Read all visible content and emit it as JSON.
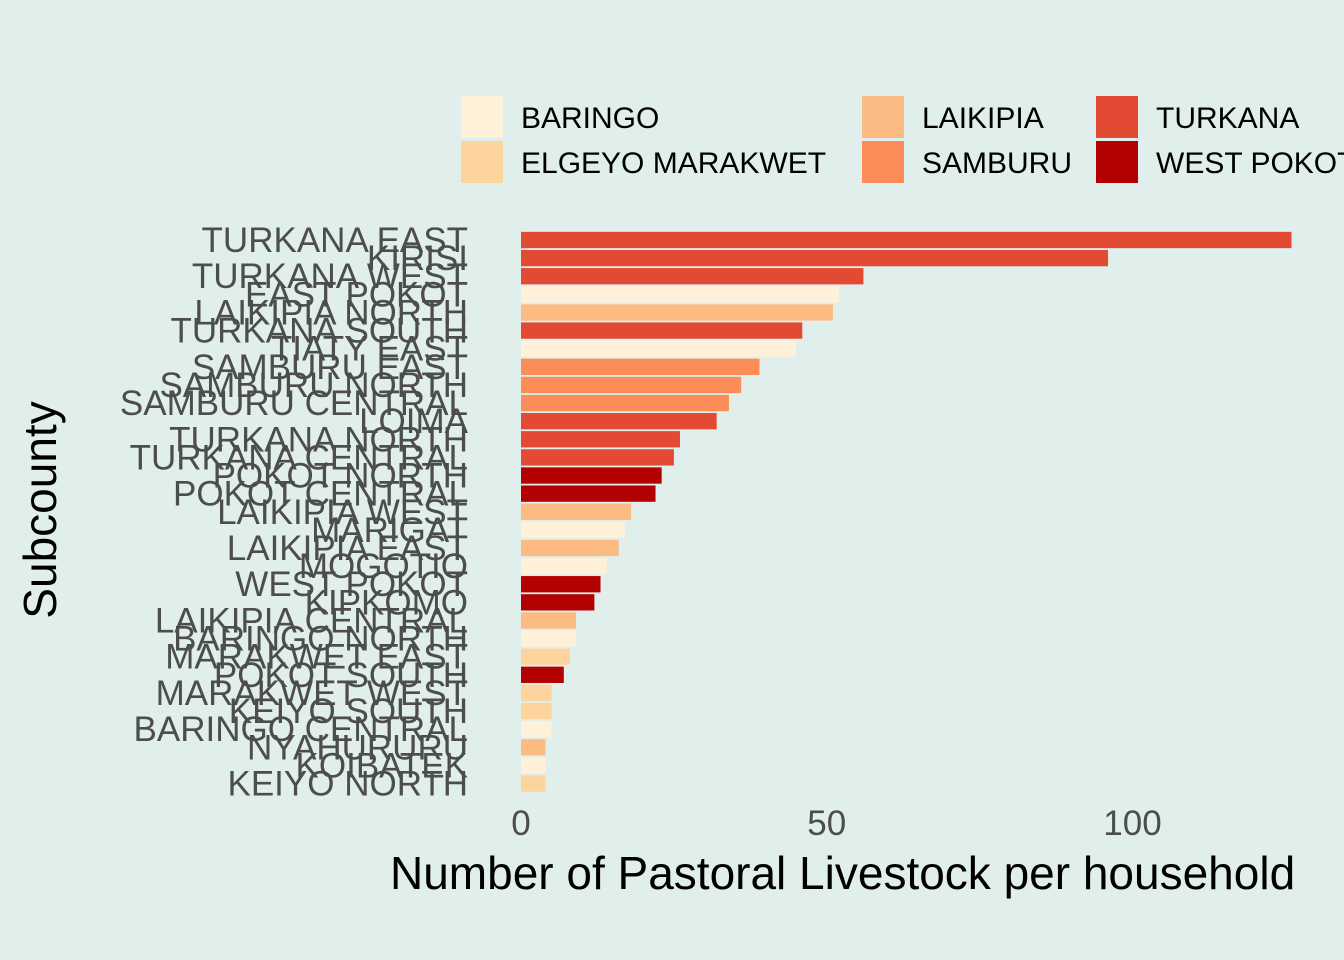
{
  "chart_data": {
    "type": "bar",
    "orientation": "horizontal",
    "xlabel": "Number of Pastoral Livestock per household",
    "ylabel": "Subcounty",
    "xlim": [
      0,
      128
    ],
    "x_ticks": [
      0,
      50,
      100
    ],
    "grid": false,
    "legend_position": "top",
    "legend": [
      {
        "name": "BARINGO",
        "color": "#fef0d9"
      },
      {
        "name": "ELGEYO MARAKWET",
        "color": "#fdd49e"
      },
      {
        "name": "LAIKIPIA",
        "color": "#fdbb84"
      },
      {
        "name": "SAMBURU",
        "color": "#fc8d59"
      },
      {
        "name": "TURKANA",
        "color": "#e34a33"
      },
      {
        "name": "WEST POKOT",
        "color": "#b30000"
      }
    ],
    "bars": [
      {
        "category": "TURKANA EAST",
        "county": "TURKANA",
        "value": 126
      },
      {
        "category": "KIRISI",
        "county": "TURKANA",
        "value": 96
      },
      {
        "category": "TURKANA WEST",
        "county": "TURKANA",
        "value": 56
      },
      {
        "category": "EAST POKOT",
        "county": "BARINGO",
        "value": 52
      },
      {
        "category": "LAIKIPIA NORTH",
        "county": "LAIKIPIA",
        "value": 51
      },
      {
        "category": "TURKANA SOUTH",
        "county": "TURKANA",
        "value": 46
      },
      {
        "category": "TIATY EAST",
        "county": "BARINGO",
        "value": 45
      },
      {
        "category": "SAMBURU EAST",
        "county": "SAMBURU",
        "value": 39
      },
      {
        "category": "SAMBURU NORTH",
        "county": "SAMBURU",
        "value": 36
      },
      {
        "category": "SAMBURU CENTRAL",
        "county": "SAMBURU",
        "value": 34
      },
      {
        "category": "LOIMA",
        "county": "TURKANA",
        "value": 32
      },
      {
        "category": "TURKANA NORTH",
        "county": "TURKANA",
        "value": 26
      },
      {
        "category": "TURKANA CENTRAL",
        "county": "TURKANA",
        "value": 25
      },
      {
        "category": "POKOT NORTH",
        "county": "WEST POKOT",
        "value": 23
      },
      {
        "category": "POKOT CENTRAL",
        "county": "WEST POKOT",
        "value": 22
      },
      {
        "category": "LAIKIPIA WEST",
        "county": "LAIKIPIA",
        "value": 18
      },
      {
        "category": "MARIGAT",
        "county": "BARINGO",
        "value": 17
      },
      {
        "category": "LAIKIPIA EAST",
        "county": "LAIKIPIA",
        "value": 16
      },
      {
        "category": "MOGOTIO",
        "county": "BARINGO",
        "value": 14
      },
      {
        "category": "WEST POKOT",
        "county": "WEST POKOT",
        "value": 13
      },
      {
        "category": "KIPKOMO",
        "county": "WEST POKOT",
        "value": 12
      },
      {
        "category": "LAIKIPIA CENTRAL",
        "county": "LAIKIPIA",
        "value": 9
      },
      {
        "category": "BARINGO NORTH",
        "county": "BARINGO",
        "value": 9
      },
      {
        "category": "MARAKWET EAST",
        "county": "ELGEYO MARAKWET",
        "value": 8
      },
      {
        "category": "POKOT SOUTH",
        "county": "WEST POKOT",
        "value": 7
      },
      {
        "category": "MARAKWET WEST",
        "county": "ELGEYO MARAKWET",
        "value": 5
      },
      {
        "category": "KEIYO SOUTH",
        "county": "ELGEYO MARAKWET",
        "value": 5
      },
      {
        "category": "BARINGO CENTRAL",
        "county": "BARINGO",
        "value": 5
      },
      {
        "category": "NYAHURURU",
        "county": "LAIKIPIA",
        "value": 4
      },
      {
        "category": "KOIBATEK",
        "county": "BARINGO",
        "value": 4
      },
      {
        "category": "KEIYO NORTH",
        "county": "ELGEYO MARAKWET",
        "value": 4
      }
    ]
  }
}
